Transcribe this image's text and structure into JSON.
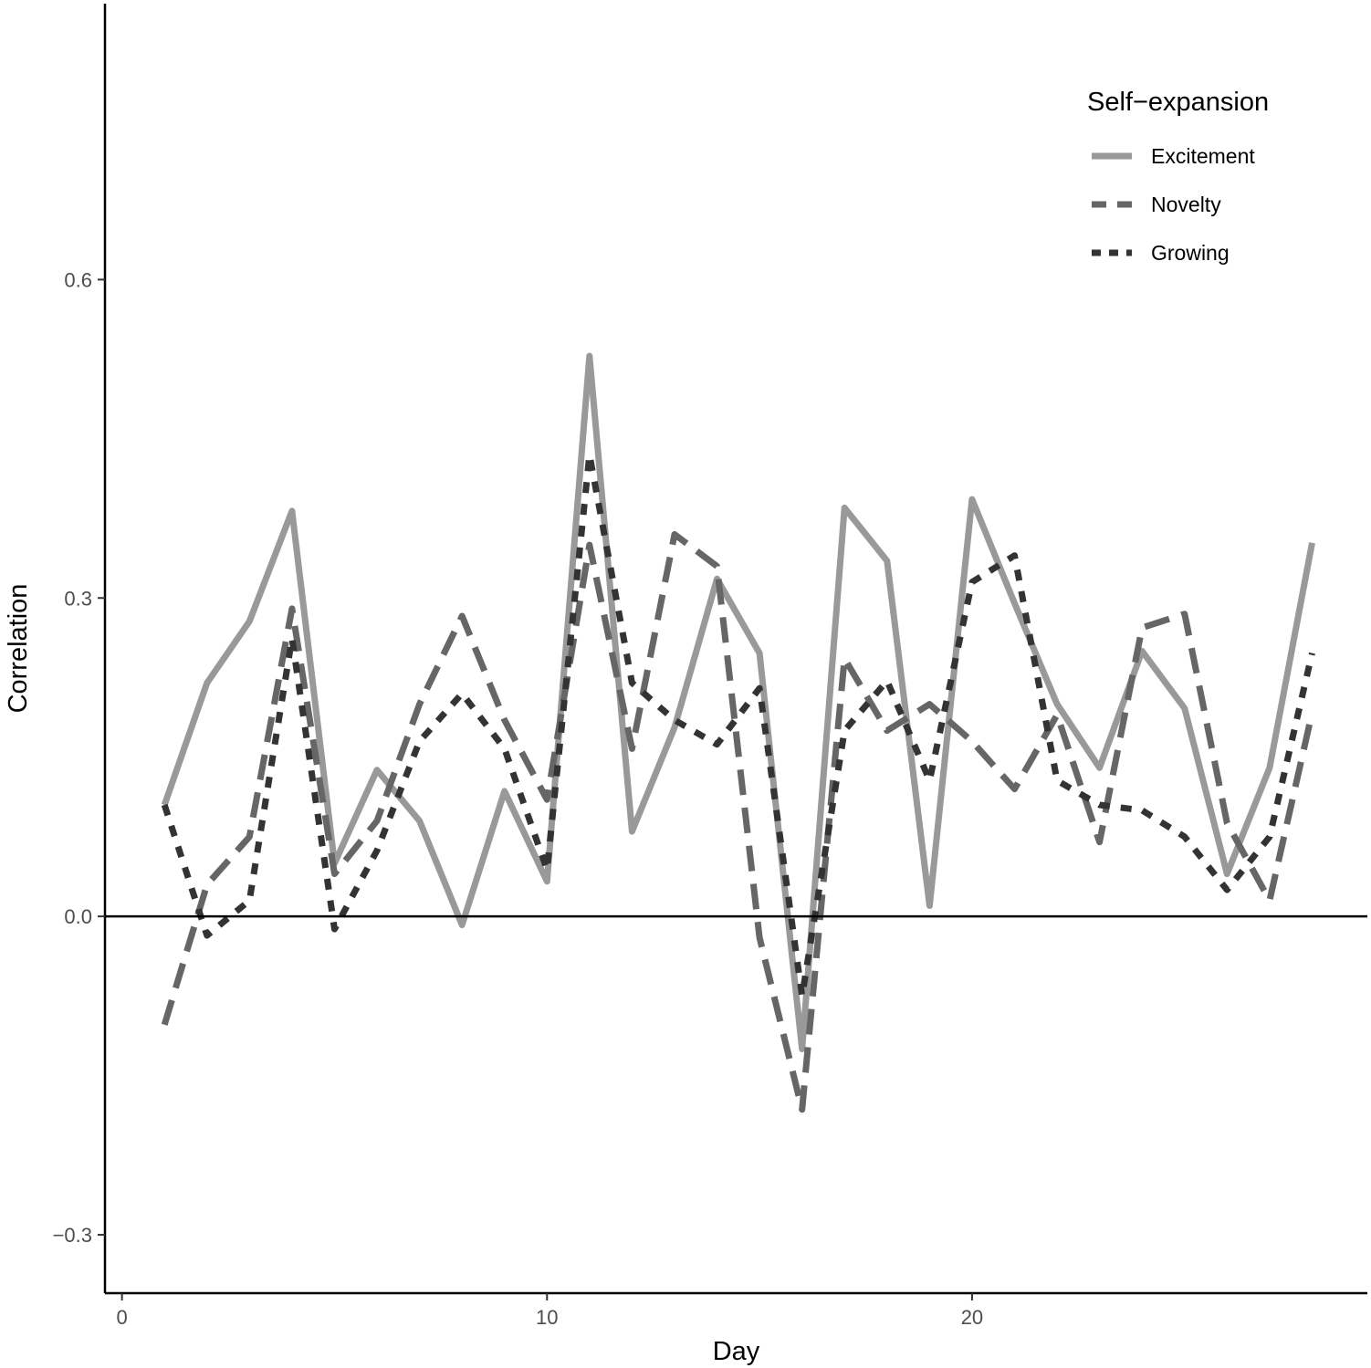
{
  "chart_data": {
    "type": "line",
    "xlabel": "Day",
    "ylabel": "Correlation",
    "xlim": [
      -0.4,
      29.3
    ],
    "ylim": [
      -0.355,
      0.86
    ],
    "x_ticks": [
      0,
      10,
      20
    ],
    "x_tick_labels": [
      "0",
      "10",
      "20"
    ],
    "y_ticks": [
      -0.3,
      0.0,
      0.3,
      0.6
    ],
    "y_tick_labels": [
      "−0.3",
      "0.0",
      "0.3",
      "0.6"
    ],
    "hline": 0,
    "grid": false,
    "legend": {
      "title": "Self−expansion",
      "position": "top-right"
    },
    "x": [
      1,
      2,
      3,
      4,
      5,
      6,
      7,
      8,
      9,
      10,
      11,
      12,
      13,
      14,
      15,
      16,
      17,
      18,
      19,
      20,
      21,
      22,
      23,
      24,
      25,
      26,
      27,
      28
    ],
    "series": [
      {
        "name": "Excitement",
        "color": "#999999",
        "dash": "solid",
        "values": [
          0.105,
          0.22,
          0.278,
          0.382,
          0.05,
          0.138,
          0.09,
          -0.008,
          0.118,
          0.033,
          0.528,
          0.08,
          0.178,
          0.318,
          0.248,
          -0.125,
          0.385,
          0.335,
          0.01,
          0.393,
          0.295,
          0.2,
          0.14,
          0.25,
          0.196,
          0.04,
          0.14,
          0.352
        ]
      },
      {
        "name": "Novelty",
        "color": "#666666",
        "dash": "long",
        "values": [
          -0.102,
          0.03,
          0.075,
          0.29,
          0.04,
          0.09,
          0.2,
          0.283,
          0.185,
          0.11,
          0.35,
          0.158,
          0.36,
          0.33,
          -0.02,
          -0.182,
          0.243,
          0.175,
          0.2,
          0.165,
          0.12,
          0.19,
          0.07,
          0.272,
          0.285,
          0.088,
          0.015,
          0.192
        ]
      },
      {
        "name": "Growing",
        "color": "#333333",
        "dash": "dot",
        "values": [
          0.105,
          -0.018,
          0.015,
          0.262,
          -0.012,
          0.062,
          0.165,
          0.21,
          0.158,
          0.044,
          0.435,
          0.22,
          0.185,
          0.162,
          0.215,
          -0.075,
          0.175,
          0.222,
          0.128,
          0.315,
          0.34,
          0.128,
          0.105,
          0.1,
          0.075,
          0.025,
          0.075,
          0.248
        ]
      }
    ]
  }
}
